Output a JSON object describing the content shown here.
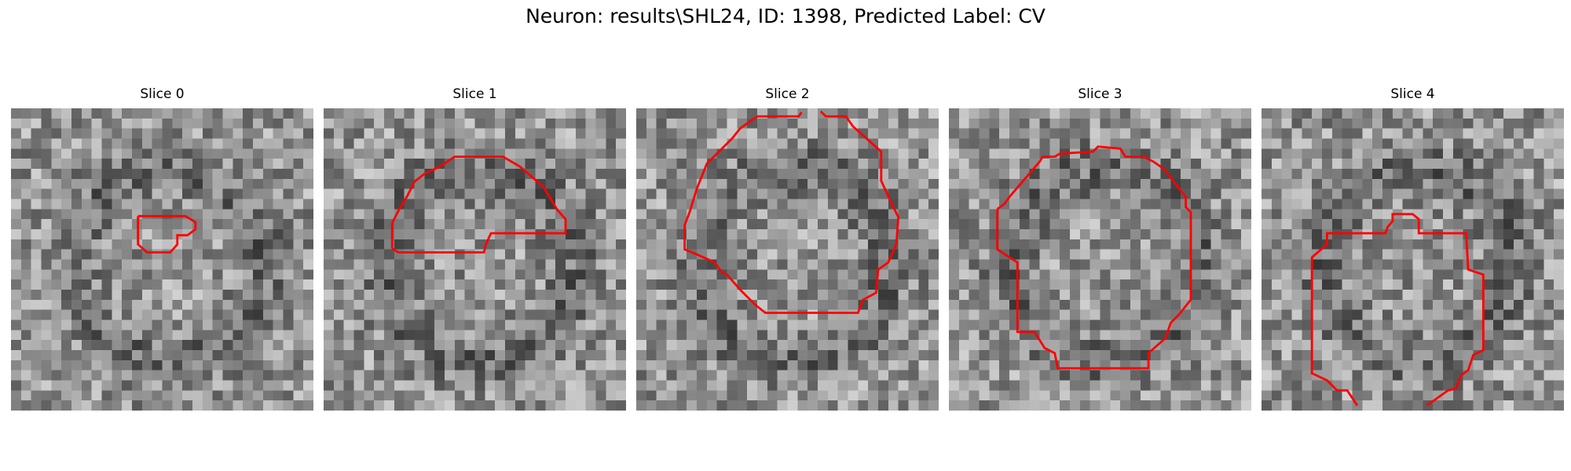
{
  "figure": {
    "title": "Neuron: results\\SHL24, ID: 1398, Predicted Label: CV"
  },
  "panels": [
    {
      "title": "Slice 0",
      "seed": 11,
      "contour_color": "#ff0000"
    },
    {
      "title": "Slice 1",
      "seed": 23,
      "contour_color": "#ff0000"
    },
    {
      "title": "Slice 2",
      "seed": 37,
      "contour_color": "#ff0000"
    },
    {
      "title": "Slice 3",
      "seed": 51,
      "contour_color": "#ff0000"
    },
    {
      "title": "Slice 4",
      "seed": 67,
      "contour_color": "#ff0000"
    }
  ],
  "colors": {
    "contour": "#ff0000",
    "colormap": "gray"
  }
}
